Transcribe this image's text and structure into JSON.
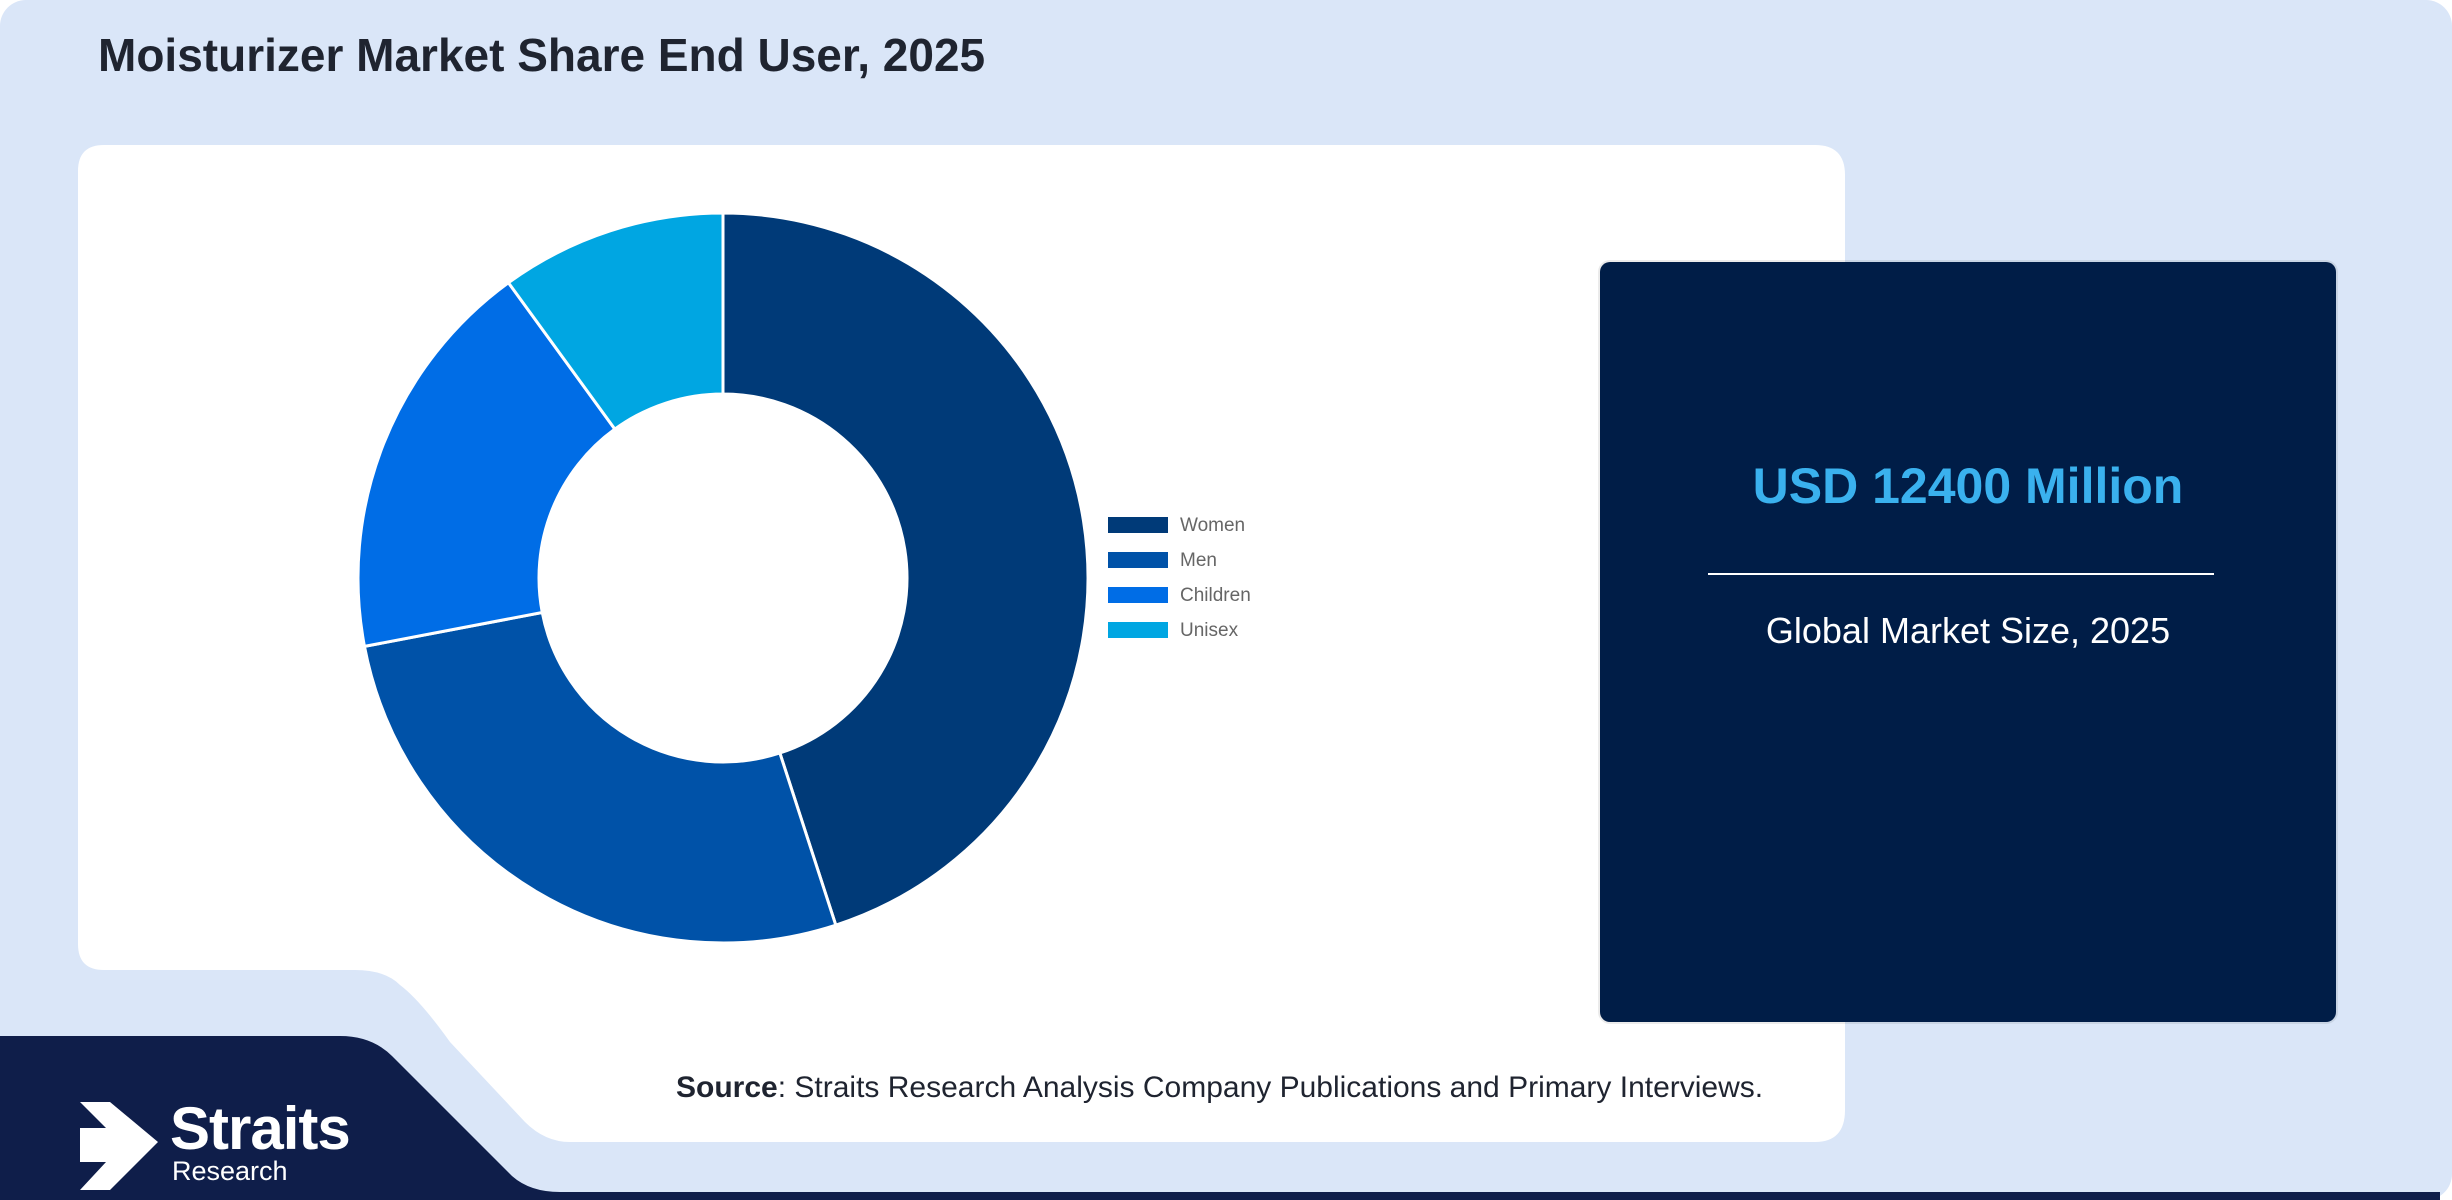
{
  "title": "Moisturizer Market Share End User, 2025",
  "colors": {
    "background_panel": "#dae6f8",
    "card": "#ffffff",
    "stat_card": "#001d47",
    "stat_value": "#3ab1ee",
    "footer": "#0f1e4a"
  },
  "chart_data": {
    "type": "pie",
    "donut": true,
    "categories": [
      "Women",
      "Men",
      "Children",
      "Unisex"
    ],
    "values": [
      45,
      27,
      18,
      10
    ],
    "colors": [
      "#003a78",
      "#0052a8",
      "#006de6",
      "#00a6e2"
    ],
    "legend_position": "right"
  },
  "stat": {
    "value": "USD 12400 Million",
    "caption": "Global Market Size, 2025"
  },
  "source": {
    "label": "Source",
    "text": ": Straits Research Analysis Company Publications and Primary Interviews."
  },
  "logo": {
    "name": "Straits",
    "sub": "Research"
  }
}
